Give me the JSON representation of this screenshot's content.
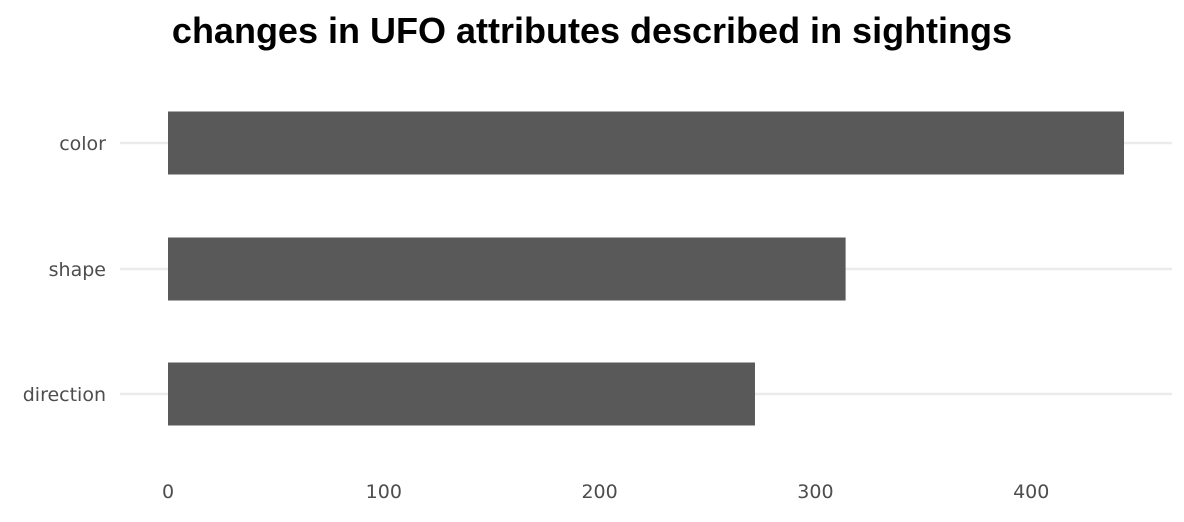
{
  "chart_data": {
    "type": "bar",
    "orientation": "horizontal",
    "title": "changes in UFO attributes described in sightings",
    "xlabel": "",
    "ylabel": "",
    "categories": [
      "color",
      "shape",
      "direction"
    ],
    "values": [
      443,
      314,
      272
    ],
    "xlim": [
      0,
      465
    ],
    "xticks": [
      0,
      100,
      200,
      300,
      400
    ],
    "grid": true,
    "colors": {
      "bar": "#595959",
      "grid": "#ebebeb",
      "tick_text": "#4d4d4d"
    }
  }
}
